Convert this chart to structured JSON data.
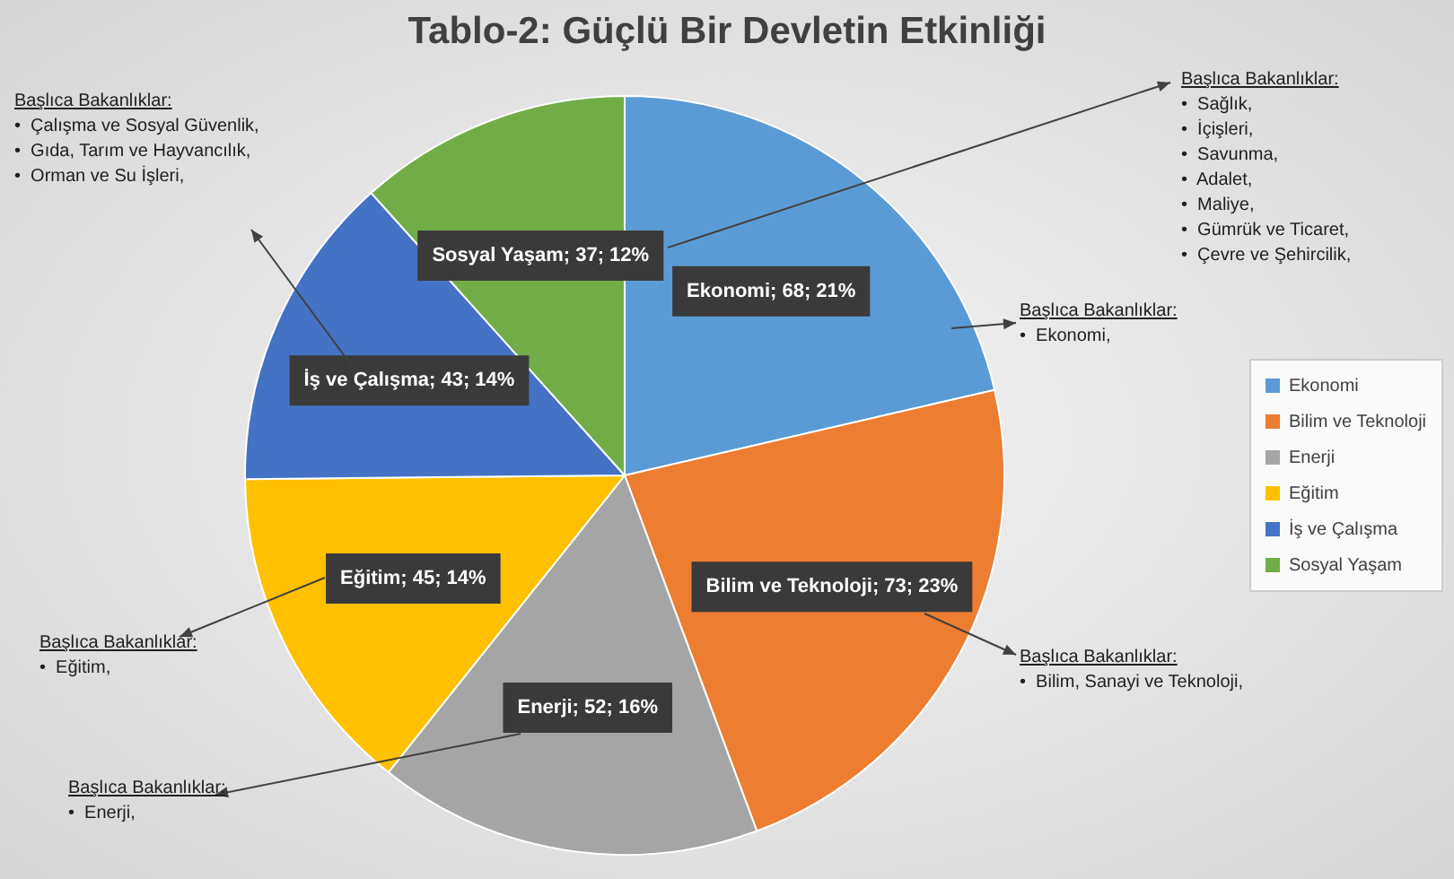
{
  "chart_data": {
    "type": "pie",
    "title": "Tablo-2: Güçlü Bir Devletin Etkinliği",
    "categories": [
      "Ekonomi",
      "Bilim ve Teknoloji",
      "Enerji",
      "Eğitim",
      "İş ve Çalışma",
      "Sosyal Yaşam"
    ],
    "values": [
      68,
      73,
      52,
      45,
      43,
      37
    ],
    "colors": [
      "#5b9bd5",
      "#ed7d31",
      "#a5a5a5",
      "#ffc000",
      "#4472c4",
      "#70ad47"
    ],
    "value_labels": [
      "Ekonomi; 68; 21%",
      "Bilim ve Teknoloji; 73; 23%",
      "Enerji; 52; 16%",
      "Eğitim; 45; 14%",
      "İş ve Çalışma; 43; 14%",
      "Sosyal Yaşam; 37; 12%"
    ],
    "legend": "right",
    "annotations": [
      "Başlıca Bakanlıklar:\n•  Çalışma ve Sosyal Güvenlik,\n•  Gıda, Tarım ve Hayvancılık,\n•  Orman ve Su İşleri,",
      "Başlıca Bakanlıklar:\n•  Sağlık,\n•  İçişleri,\n•  Savunma,\n•  Adalet,\n•  Maliye,\n•  Gümrük ve Ticaret,\n•  Çevre ve Şehircilik,",
      "Başlıca Bakanlıklar:\n•  Ekonomi,",
      "Başlıca Bakanlıklar:\n•  Bilim, Sanayi ve Teknoloji,",
      "Başlıca Bakanlıklar:\n•  Eğitim,",
      "Başlıca Bakanlıklar:\n•  Enerji,"
    ]
  }
}
